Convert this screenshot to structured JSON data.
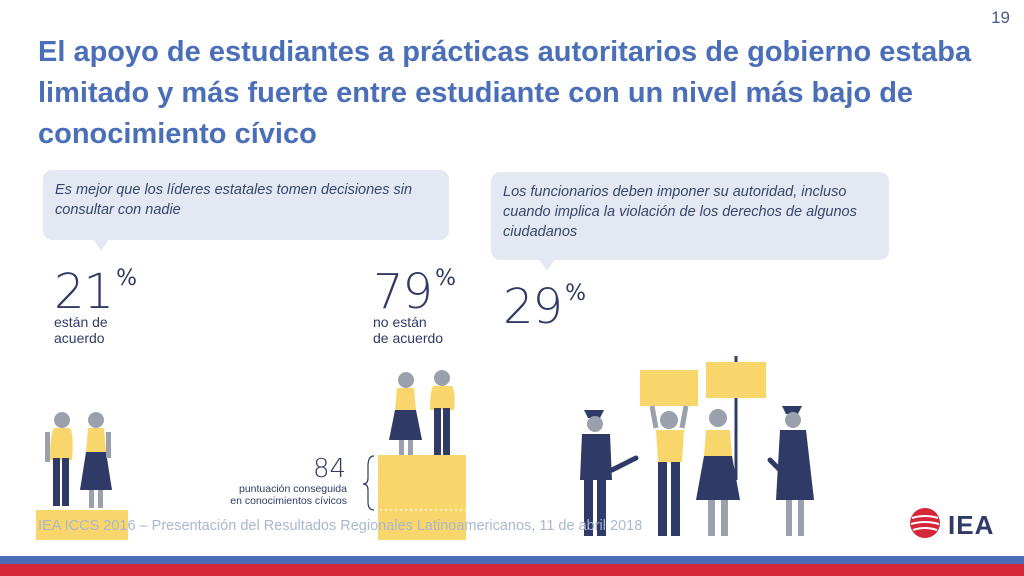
{
  "page_number": "19",
  "title": "El apoyo de estudiantes a prácticas autoritarios de gobierno estaba limitado y más fuerte entre estudiante con un nivel más bajo de conocimiento cívico",
  "bubble_left": "Es mejor que los líderes estatales tomen decisiones sin consultar con nadie",
  "bubble_right": "Los funcionarios deben imponer su autoridad, incluso cuando implica la violación de los derechos de algunos ciudadanos",
  "stats": {
    "agree": {
      "value": "21",
      "unit": "%",
      "line1": "están de",
      "line2": "acuerdo"
    },
    "disagree": {
      "value": "79",
      "unit": "%",
      "line1": "no están",
      "line2": "de acuerdo"
    },
    "officials": {
      "value": "29",
      "unit": "%"
    }
  },
  "score": {
    "value": "84",
    "line1": "puntuación conseguida",
    "line2": "en conocimientos cívicos"
  },
  "footer": "IEA ICCS 2016 – Presentación del Resultados Regionales Latinoamericanos, 11 de abril 2018",
  "logo_text": "IEA",
  "colors": {
    "title": "#4a6fb8",
    "bubble": "#e3e8f3",
    "navy": "#2f3b66",
    "yellow": "#f8d66c",
    "footer_blue": "#4a6fb8",
    "footer_red": "#d6263a"
  }
}
